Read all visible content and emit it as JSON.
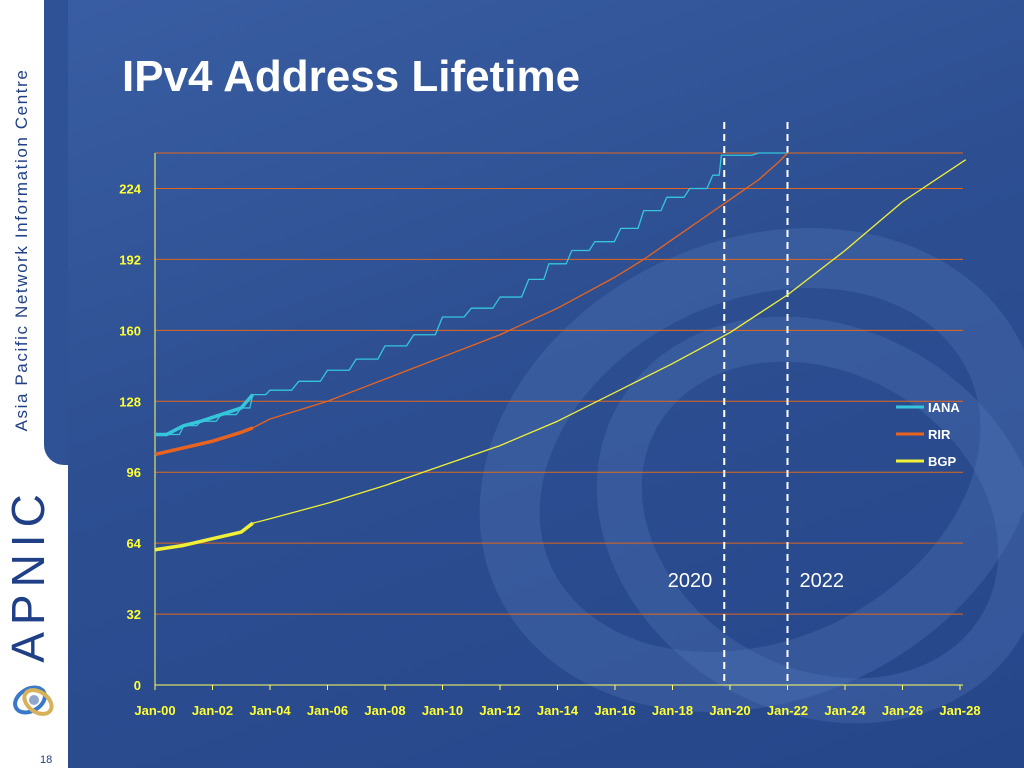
{
  "slide": {
    "title": "IPv4 Address Lifetime",
    "sidebar_text": "Asia Pacific Network Information Centre",
    "logo_text": "APNIC",
    "page_number": "18"
  },
  "colors": {
    "background": "#2d4f92",
    "grid": "#e0661e",
    "tick_labels": "#ffff33",
    "iana": "#35c6dc",
    "rir": "#e8641e",
    "bgp": "#f0f036"
  },
  "chart_data": {
    "type": "line",
    "title": "",
    "xlabel": "",
    "ylabel": "",
    "xlim": [
      "Jan-00",
      "Jan-28"
    ],
    "ylim": [
      0,
      240
    ],
    "y_ticks": [
      0,
      32,
      64,
      96,
      128,
      160,
      192,
      224
    ],
    "x_ticks": [
      "Jan-00",
      "Jan-02",
      "Jan-04",
      "Jan-06",
      "Jan-08",
      "Jan-10",
      "Jan-12",
      "Jan-14",
      "Jan-16",
      "Jan-18",
      "Jan-20",
      "Jan-22",
      "Jan-24",
      "Jan-26",
      "Jan-28"
    ],
    "grid": "horizontal",
    "legend_position": "right",
    "series": [
      {
        "name": "IANA",
        "style": "stepped",
        "x": [
          2000.0,
          2000.4,
          2001.0,
          2001.6,
          2002.3,
          2003.0,
          2003.4,
          2004.0,
          2005.0,
          2006.0,
          2007.0,
          2008.0,
          2009.0,
          2010.0,
          2011.0,
          2012.0,
          2013.0,
          2013.7,
          2014.5,
          2015.3,
          2016.2,
          2017.0,
          2017.8,
          2018.6,
          2019.4,
          2019.7,
          2020.0,
          2021.0,
          2022.0
        ],
        "y": [
          113,
          113,
          117,
          119,
          122,
          125,
          131,
          133,
          137,
          142,
          147,
          153,
          158,
          166,
          170,
          175,
          183,
          190,
          196,
          200,
          206,
          214,
          220,
          224,
          230,
          239,
          239,
          240,
          240
        ]
      },
      {
        "name": "RIR",
        "style": "smooth",
        "x": [
          2000.0,
          2001.0,
          2002.0,
          2003.0,
          2003.4,
          2004.0,
          2005.0,
          2006.0,
          2007.0,
          2008.0,
          2009.0,
          2010.0,
          2011.0,
          2012.0,
          2013.0,
          2014.0,
          2015.0,
          2016.0,
          2017.0,
          2018.0,
          2019.0,
          2020.0,
          2021.0,
          2021.7,
          2022.0
        ],
        "y": [
          104,
          107,
          110,
          114,
          116,
          120,
          124,
          128,
          133,
          138,
          143,
          148,
          153,
          158,
          164,
          170,
          177,
          184,
          192,
          201,
          210,
          219,
          228,
          236,
          240
        ]
      },
      {
        "name": "BGP",
        "style": "smooth",
        "x": [
          2000.0,
          2001.0,
          2002.0,
          2003.0,
          2003.4,
          2004.0,
          2006.0,
          2008.0,
          2010.0,
          2012.0,
          2014.0,
          2016.0,
          2018.0,
          2020.0,
          2022.0,
          2024.0,
          2026.0,
          2028.2
        ],
        "y": [
          61,
          63,
          66,
          69,
          73,
          75,
          82,
          90,
          99,
          108,
          119,
          132,
          145,
          159,
          176,
          196,
          218,
          237
        ]
      }
    ],
    "annotations": [
      {
        "label": "2020",
        "x": 2019.8
      },
      {
        "label": "2022",
        "x": 2022.0
      }
    ]
  }
}
